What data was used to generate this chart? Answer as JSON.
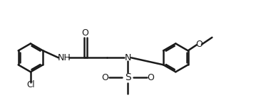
{
  "bg_color": "#ffffff",
  "line_color": "#1a1a1a",
  "line_width": 1.8,
  "font_size": 9,
  "fig_width": 3.66,
  "fig_height": 1.55,
  "dpi": 100,
  "xlim": [
    0,
    9.5
  ],
  "ylim": [
    0,
    3.3
  ]
}
